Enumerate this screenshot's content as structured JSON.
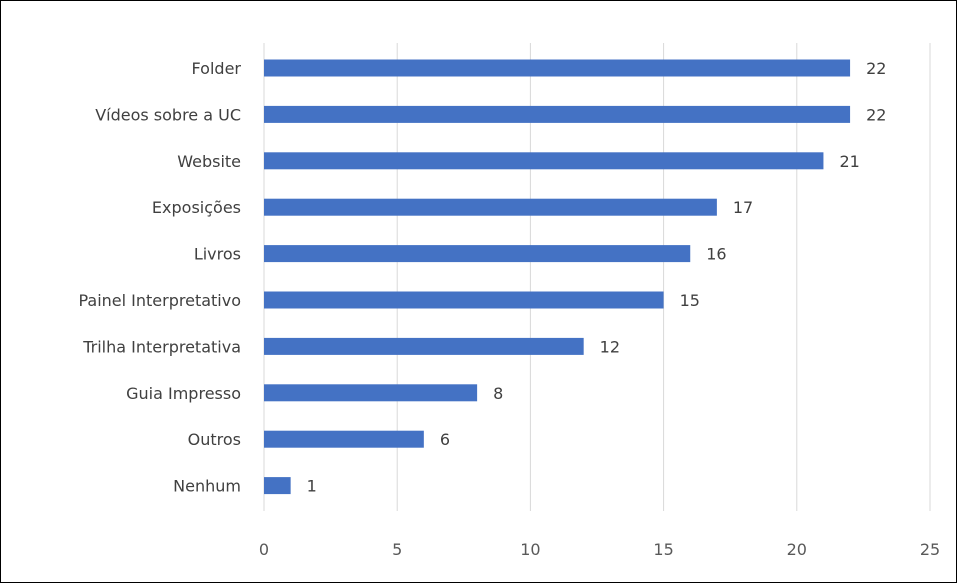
{
  "chart_data": {
    "type": "bar",
    "orientation": "horizontal",
    "categories": [
      "Folder",
      "Vídeos sobre a UC",
      "Website",
      "Exposições",
      "Livros",
      "Painel Interpretativo",
      "Trilha Interpretativa",
      "Guia Impresso",
      "Outros",
      "Nenhum"
    ],
    "values": [
      22,
      22,
      21,
      17,
      16,
      15,
      12,
      8,
      6,
      1
    ],
    "xlim": [
      0,
      25
    ],
    "xticks": [
      0,
      5,
      10,
      15,
      20,
      25
    ],
    "grid": "vertical",
    "data_labels": true,
    "legend": "none",
    "bar_color": "#4472C4"
  }
}
